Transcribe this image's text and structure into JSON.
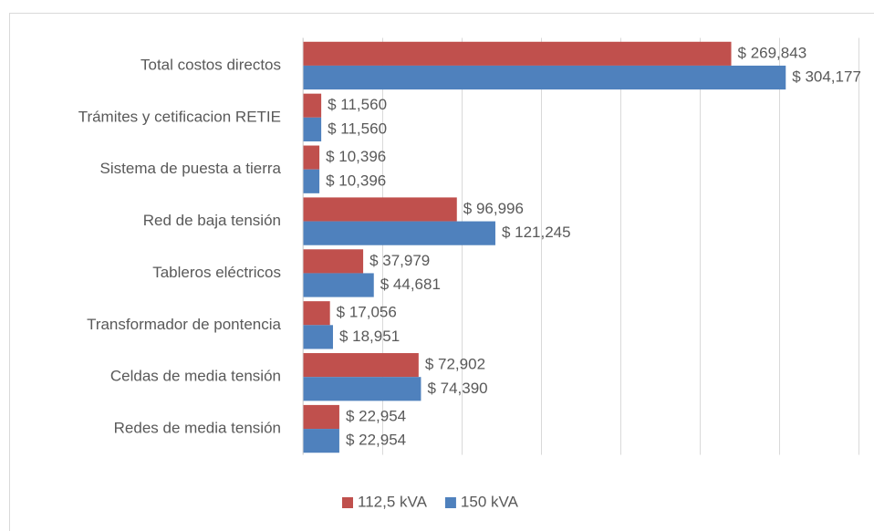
{
  "chart_data": {
    "type": "barh",
    "categories": [
      "Total costos directos",
      "Trámites y cetificacion RETIE",
      "Sistema de puesta a tierra",
      "Red de baja tensión",
      "Tableros eléctricos",
      "Transformador de pontencia",
      "Celdas de media tensión",
      "Redes de media tensión"
    ],
    "series": [
      {
        "name": "112,5 kVA",
        "color": "#c0504d",
        "values": [
          269843,
          11560,
          10396,
          96996,
          37979,
          17056,
          72902,
          22954
        ],
        "value_labels": [
          "$ 269,843",
          "$ 11,560",
          "$ 10,396",
          "$ 96,996",
          "$ 37,979",
          "$ 17,056",
          "$ 72,902",
          "$ 22,954"
        ]
      },
      {
        "name": "150 kVA",
        "color": "#4f81bd",
        "values": [
          304177,
          11560,
          10396,
          121245,
          44681,
          18951,
          74390,
          22954
        ],
        "value_labels": [
          "$ 304,177",
          "$ 11,560",
          "$ 10,396",
          "$ 121,245",
          "$ 44,681",
          "$ 18,951",
          "$ 74,390",
          "$ 22,954"
        ]
      }
    ],
    "xlim": [
      0,
      350000
    ],
    "xticks": [
      0,
      50000,
      100000,
      150000,
      200000,
      250000,
      300000,
      350000
    ],
    "grid": true,
    "legend": "bottom"
  }
}
